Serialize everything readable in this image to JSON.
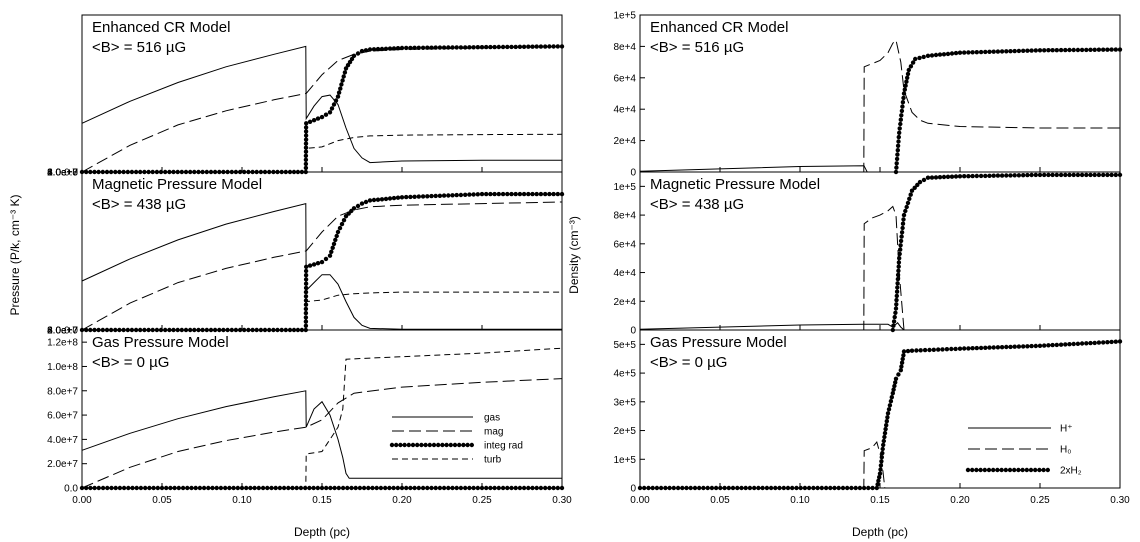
{
  "chart_data": [
    {
      "type": "line",
      "panel": "left-top",
      "title": "Enhanced CR Model",
      "subtitle": "<B> = 516 µG",
      "xlim": [
        0,
        0.3
      ],
      "ylim": [
        0,
        100000000
      ],
      "yticks": [
        "0.0",
        "2.0e+7",
        "4.0e+7",
        "6.0e+7",
        "8.0e+7",
        "1.0e+8"
      ],
      "series": [
        {
          "name": "gas",
          "style": "solid",
          "x": [
            0,
            0.03,
            0.06,
            0.09,
            0.12,
            0.1399,
            0.1401,
            0.145,
            0.15,
            0.155,
            0.16,
            0.165,
            0.17,
            0.175,
            0.18,
            0.2,
            0.25,
            0.3
          ],
          "y": [
            31000000,
            45000000,
            57000000,
            67000000,
            75000000,
            80000000,
            34000000,
            42000000,
            48000000,
            49000000,
            43000000,
            28000000,
            15000000,
            9000000,
            6000000,
            7000000,
            7500000,
            7500000
          ]
        },
        {
          "name": "mag",
          "style": "longdash",
          "x": [
            0,
            0.03,
            0.06,
            0.09,
            0.12,
            0.1399,
            0.1401,
            0.15,
            0.16,
            0.17,
            0.18,
            0.2,
            0.25,
            0.3
          ],
          "y": [
            0,
            17000000,
            30000000,
            39000000,
            46000000,
            50000000,
            50000000,
            62000000,
            71000000,
            75000000,
            77000000,
            78000000,
            79000000,
            80000000
          ]
        },
        {
          "name": "integ rad",
          "style": "dotted",
          "x": [
            0,
            0.13,
            0.1399,
            0.1401,
            0.15,
            0.155,
            0.16,
            0.165,
            0.17,
            0.175,
            0.18,
            0.2,
            0.25,
            0.3
          ],
          "y": [
            0,
            0,
            0,
            31000000,
            35000000,
            38000000,
            48000000,
            66000000,
            74000000,
            77000000,
            78000000,
            79000000,
            79500000,
            80000000
          ]
        },
        {
          "name": "turb",
          "style": "shortdash",
          "x": [
            0,
            0.1399,
            0.1401,
            0.15,
            0.16,
            0.17,
            0.18,
            0.2,
            0.25,
            0.3
          ],
          "y": [
            0,
            0,
            15000000,
            16000000,
            20000000,
            22000000,
            23000000,
            23500000,
            23800000,
            24000000
          ]
        }
      ]
    },
    {
      "type": "line",
      "panel": "left-middle",
      "title": "Magnetic Pressure Model",
      "subtitle": "<B> = 438 µG",
      "xlim": [
        0,
        0.3
      ],
      "ylim": [
        0,
        100000000
      ],
      "yticks": [
        "0.0",
        "2.0e+7",
        "4.0e+7",
        "6.0e+7",
        "8.0e+7"
      ],
      "series": [
        {
          "name": "gas",
          "style": "solid",
          "x": [
            0,
            0.03,
            0.06,
            0.09,
            0.12,
            0.1399,
            0.1401,
            0.145,
            0.15,
            0.155,
            0.16,
            0.165,
            0.17,
            0.175,
            0.18,
            0.2,
            0.25,
            0.3
          ],
          "y": [
            31000000,
            45000000,
            57000000,
            67000000,
            75000000,
            80000000,
            25000000,
            30000000,
            35000000,
            35000000,
            29000000,
            18000000,
            8000000,
            3000000,
            1000000,
            500000,
            500000,
            500000
          ]
        },
        {
          "name": "mag",
          "style": "longdash",
          "x": [
            0,
            0.03,
            0.06,
            0.09,
            0.12,
            0.1399,
            0.1401,
            0.15,
            0.16,
            0.17,
            0.18,
            0.2,
            0.25,
            0.3
          ],
          "y": [
            0,
            17000000,
            30000000,
            39000000,
            46000000,
            50000000,
            50000000,
            62000000,
            72000000,
            76000000,
            78000000,
            79000000,
            80000000,
            81000000
          ]
        },
        {
          "name": "integ rad",
          "style": "dotted",
          "x": [
            0,
            0.13,
            0.1399,
            0.1401,
            0.15,
            0.155,
            0.16,
            0.165,
            0.17,
            0.175,
            0.18,
            0.2,
            0.25,
            0.3
          ],
          "y": [
            0,
            0,
            0,
            40000000,
            43000000,
            47000000,
            62000000,
            72000000,
            77000000,
            80000000,
            82000000,
            84000000,
            86000000,
            86000000
          ]
        },
        {
          "name": "turb",
          "style": "shortdash",
          "x": [
            0,
            0.1399,
            0.1401,
            0.15,
            0.16,
            0.17,
            0.18,
            0.2,
            0.25,
            0.3
          ],
          "y": [
            0,
            0,
            18000000,
            19000000,
            22000000,
            23000000,
            23500000,
            24000000,
            24000000,
            24000000
          ]
        }
      ]
    },
    {
      "type": "line",
      "panel": "left-bottom",
      "title": "Gas Pressure Model",
      "subtitle": "<B> =  0 µG",
      "xlim": [
        0,
        0.3
      ],
      "ylim": [
        0,
        130000000
      ],
      "yticks": [
        "0.0",
        "2.0e+7",
        "4.0e+7",
        "6.0e+7",
        "8.0e+7",
        "1.0e+8",
        "1.2e+8"
      ],
      "series": [
        {
          "name": "gas",
          "style": "solid",
          "x": [
            0,
            0.03,
            0.06,
            0.09,
            0.12,
            0.1399,
            0.1401,
            0.145,
            0.15,
            0.155,
            0.16,
            0.163,
            0.165,
            0.167,
            0.2,
            0.3
          ],
          "y": [
            31000000,
            45000000,
            57000000,
            67000000,
            75000000,
            80000000,
            50000000,
            65000000,
            71000000,
            60000000,
            40000000,
            25000000,
            12000000,
            8000000,
            8000000,
            8000000
          ]
        },
        {
          "name": "mag",
          "style": "longdash",
          "x": [
            0,
            0.03,
            0.06,
            0.09,
            0.12,
            0.1399,
            0.1401,
            0.15,
            0.16,
            0.17,
            0.2,
            0.25,
            0.3
          ],
          "y": [
            0,
            17000000,
            30000000,
            39000000,
            46000000,
            50000000,
            50000000,
            56000000,
            70000000,
            78000000,
            83000000,
            87000000,
            90000000
          ]
        },
        {
          "name": "integ rad",
          "style": "dotted",
          "x": [
            0,
            0.3
          ],
          "y": [
            0,
            0
          ]
        },
        {
          "name": "turb",
          "style": "shortdash",
          "x": [
            0,
            0.1399,
            0.1401,
            0.15,
            0.155,
            0.16,
            0.163,
            0.165,
            0.2,
            0.25,
            0.3
          ],
          "y": [
            0,
            0,
            28000000,
            30000000,
            40000000,
            50000000,
            65000000,
            106000000,
            108000000,
            111000000,
            115000000
          ]
        }
      ]
    },
    {
      "type": "line",
      "panel": "right-top",
      "title": "Enhanced CR Model",
      "subtitle": "<B> = 516 µG",
      "xlim": [
        0,
        0.3
      ],
      "ylim": [
        0,
        100000
      ],
      "yticks": [
        "0",
        "2e+4",
        "4e+4",
        "6e+4",
        "8e+4",
        "1e+5"
      ],
      "series": [
        {
          "name": "H+",
          "style": "solid",
          "x": [
            0,
            0.05,
            0.1,
            0.14,
            0.142,
            0.3
          ],
          "y": [
            500,
            2000,
            3500,
            4000,
            0,
            0
          ]
        },
        {
          "name": "H0",
          "style": "longdash",
          "x": [
            0,
            0.1399,
            0.1401,
            0.145,
            0.15,
            0.155,
            0.158,
            0.16,
            0.163,
            0.165,
            0.17,
            0.175,
            0.18,
            0.2,
            0.25,
            0.3
          ],
          "y": [
            0,
            0,
            67000,
            69000,
            71000,
            76000,
            82000,
            84000,
            70000,
            52000,
            38000,
            33000,
            31000,
            29000,
            28000,
            28000
          ]
        },
        {
          "name": "2xH2",
          "style": "dotted",
          "x": [
            0.16,
            0.162,
            0.165,
            0.168,
            0.172,
            0.18,
            0.2,
            0.25,
            0.3
          ],
          "y": [
            0,
            25000,
            50000,
            65000,
            72000,
            74000,
            76000,
            77500,
            78000
          ]
        }
      ]
    },
    {
      "type": "line",
      "panel": "right-middle",
      "title": "Magnetic Pressure Model",
      "subtitle": "<B> = 438 µG",
      "xlim": [
        0,
        0.3
      ],
      "ylim": [
        0,
        110000
      ],
      "yticks": [
        "0",
        "2e+4",
        "4e+4",
        "6e+4",
        "8e+4",
        "1e+5"
      ],
      "series": [
        {
          "name": "H+",
          "style": "solid",
          "x": [
            0,
            0.05,
            0.1,
            0.14,
            0.155,
            0.158,
            0.161,
            0.163,
            0.165,
            0.3
          ],
          "y": [
            500,
            2000,
            3500,
            4000,
            4000,
            2000,
            5000,
            2000,
            0,
            0
          ]
        },
        {
          "name": "H0",
          "style": "longdash",
          "x": [
            0,
            0.1399,
            0.1401,
            0.145,
            0.15,
            0.155,
            0.158,
            0.16,
            0.162,
            0.165,
            0.3
          ],
          "y": [
            0,
            0,
            74000,
            78000,
            80000,
            83000,
            86000,
            80000,
            40000,
            0,
            0
          ]
        },
        {
          "name": "2xH2",
          "style": "dotted",
          "x": [
            0.158,
            0.16,
            0.162,
            0.165,
            0.17,
            0.175,
            0.18,
            0.2,
            0.25,
            0.3
          ],
          "y": [
            0,
            15000,
            50000,
            80000,
            97000,
            103000,
            106000,
            107000,
            108000,
            108000
          ]
        }
      ]
    },
    {
      "type": "line",
      "panel": "right-bottom",
      "title": "Gas Pressure Model",
      "subtitle": "<B> =  0 µG",
      "xlim": [
        0,
        0.3
      ],
      "ylim": [
        0,
        550000
      ],
      "yticks": [
        "0",
        "1e+5",
        "2e+5",
        "3e+5",
        "4e+5",
        "5e+5"
      ],
      "series": [
        {
          "name": "H+",
          "style": "solid",
          "x": [
            0,
            0.15,
            0.3
          ],
          "y": [
            0,
            0,
            0
          ]
        },
        {
          "name": "H0",
          "style": "longdash",
          "x": [
            0,
            0.1399,
            0.1401,
            0.145,
            0.148,
            0.151,
            0.153,
            0.3
          ],
          "y": [
            0,
            0,
            130000,
            140000,
            160000,
            100000,
            0,
            0
          ]
        },
        {
          "name": "2xH2",
          "style": "dotted",
          "x": [
            0,
            0.148,
            0.15,
            0.152,
            0.155,
            0.158,
            0.16,
            0.163,
            0.165,
            0.17,
            0.2,
            0.25,
            0.3
          ],
          "y": [
            0,
            0,
            50000,
            150000,
            260000,
            330000,
            380000,
            410000,
            475000,
            478000,
            485000,
            495000,
            510000
          ]
        }
      ]
    }
  ],
  "left_ylabel": "Pressure (P/k, cm⁻³ K)",
  "right_ylabel": "Density (cm⁻³)",
  "xlabel": "Depth (pc)",
  "xticks": [
    "0.00",
    "0.05",
    "0.10",
    "0.15",
    "0.20",
    "0.25",
    "0.30"
  ],
  "left_legend": [
    "gas",
    "mag",
    "integ rad",
    "turb"
  ],
  "right_legend": [
    "H⁺",
    "H₀",
    "2xH₂"
  ]
}
